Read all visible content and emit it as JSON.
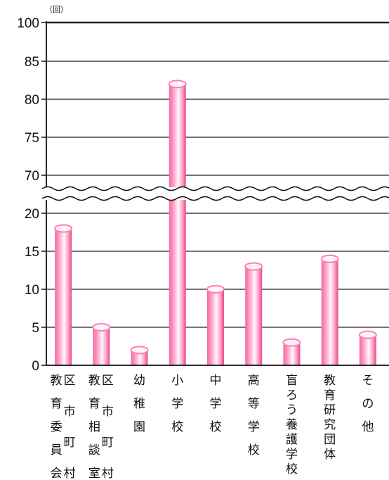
{
  "chart_data": {
    "type": "bar",
    "unit_label": "（回）",
    "categories": [
      "教育委員会（区市町村）",
      "教育相談室（区市町村）",
      "幼稚園",
      "小学校",
      "中学校",
      "高等学校",
      "盲ろう養護学校",
      "教育研究団体",
      "その他"
    ],
    "category_labels": [
      {
        "main": [
          "教",
          "育",
          "委",
          "員",
          "会"
        ],
        "side": [
          "区",
          "市",
          "町",
          "村"
        ]
      },
      {
        "main": [
          "教",
          "育",
          "相",
          "談",
          "室"
        ],
        "side": [
          "区",
          "市",
          "町",
          "村"
        ]
      },
      {
        "main": [
          "幼",
          "稚",
          "園"
        ]
      },
      {
        "main": [
          "小",
          "学",
          "校"
        ]
      },
      {
        "main": [
          "中",
          "学",
          "校"
        ]
      },
      {
        "main": [
          "高",
          "等",
          "学",
          "校"
        ]
      },
      {
        "main": [
          "盲",
          "ろ",
          "う",
          "養",
          "護",
          "学",
          "校"
        ]
      },
      {
        "main": [
          "教",
          "育",
          "研",
          "究",
          "団",
          "体"
        ]
      },
      {
        "main": [
          "そ",
          "の",
          "他"
        ]
      }
    ],
    "values": [
      18,
      5,
      2,
      82,
      10,
      13,
      3,
      14,
      4
    ],
    "y_ticks_lower": [
      "0",
      "5",
      "10",
      "15",
      "20"
    ],
    "y_ticks_upper": [
      "70",
      "75",
      "80",
      "85",
      "100"
    ],
    "y_axis_break": [
      20,
      70
    ],
    "grid": true,
    "colors": {
      "bar": "#ff7fb0",
      "bar_light": "#fff5f9",
      "bar_dark": "#e83d83",
      "grid": "#222222"
    }
  }
}
